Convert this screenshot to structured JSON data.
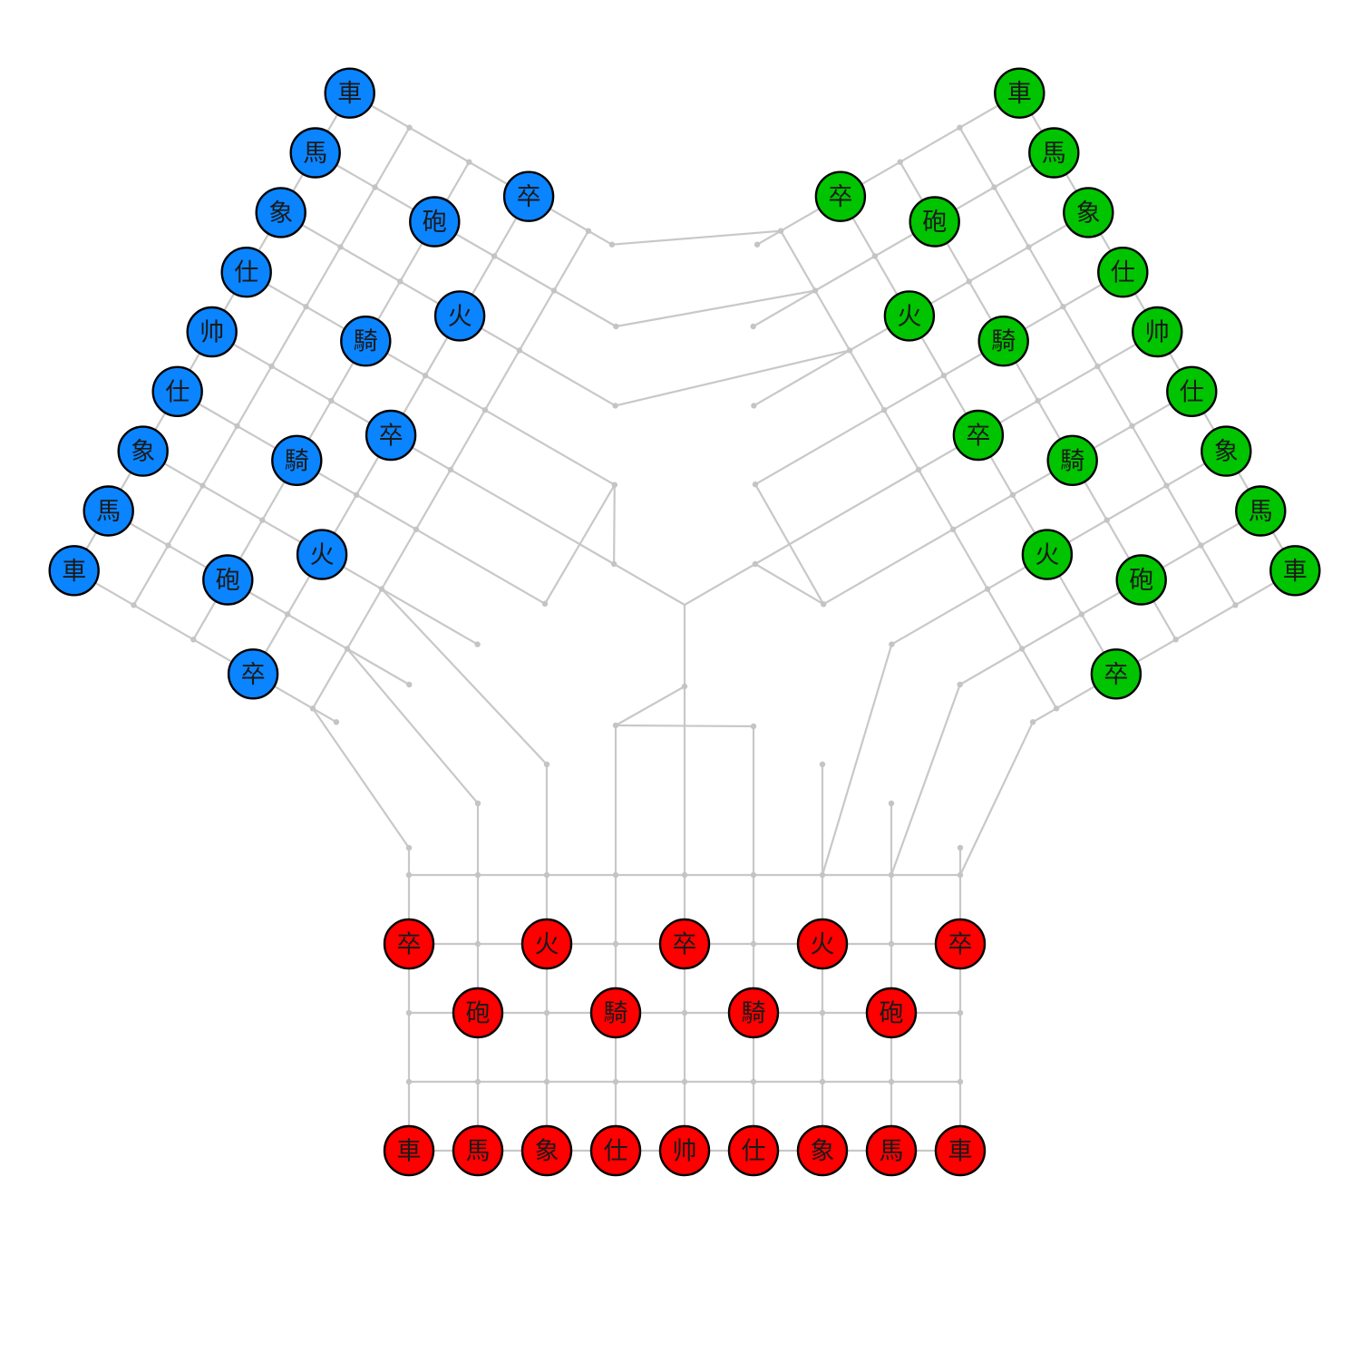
{
  "colors": {
    "blue": "#0a84ff",
    "green": "#00c400",
    "red": "#ff0000",
    "grid": "#c8c8c8",
    "background": "#ffffff"
  },
  "board": {
    "description_words": "three-player xiangqi board (three hexagonal arms joined at center)"
  },
  "players": {
    "red": {
      "back_rank": [
        "車",
        "馬",
        "象",
        "仕",
        "帅",
        "仕",
        "象",
        "馬",
        "車"
      ],
      "second_rank": [
        "砲",
        "騎",
        "騎",
        "砲"
      ],
      "front_rank": [
        "卒",
        "火",
        "卒",
        "火",
        "卒"
      ]
    },
    "blue": {
      "back_rank": [
        "車",
        "馬",
        "象",
        "仕",
        "帅",
        "仕",
        "象",
        "馬",
        "車"
      ],
      "second_rank": [
        "砲",
        "騎",
        "騎",
        "砲"
      ],
      "front_rank": [
        "卒",
        "火",
        "卒",
        "火",
        "卒"
      ]
    },
    "green": {
      "back_rank": [
        "車",
        "馬",
        "象",
        "仕",
        "帅",
        "仕",
        "象",
        "馬",
        "車"
      ],
      "second_rank": [
        "砲",
        "騎",
        "騎",
        "砲"
      ],
      "front_rank": [
        "卒",
        "火",
        "卒",
        "火",
        "卒"
      ]
    }
  }
}
